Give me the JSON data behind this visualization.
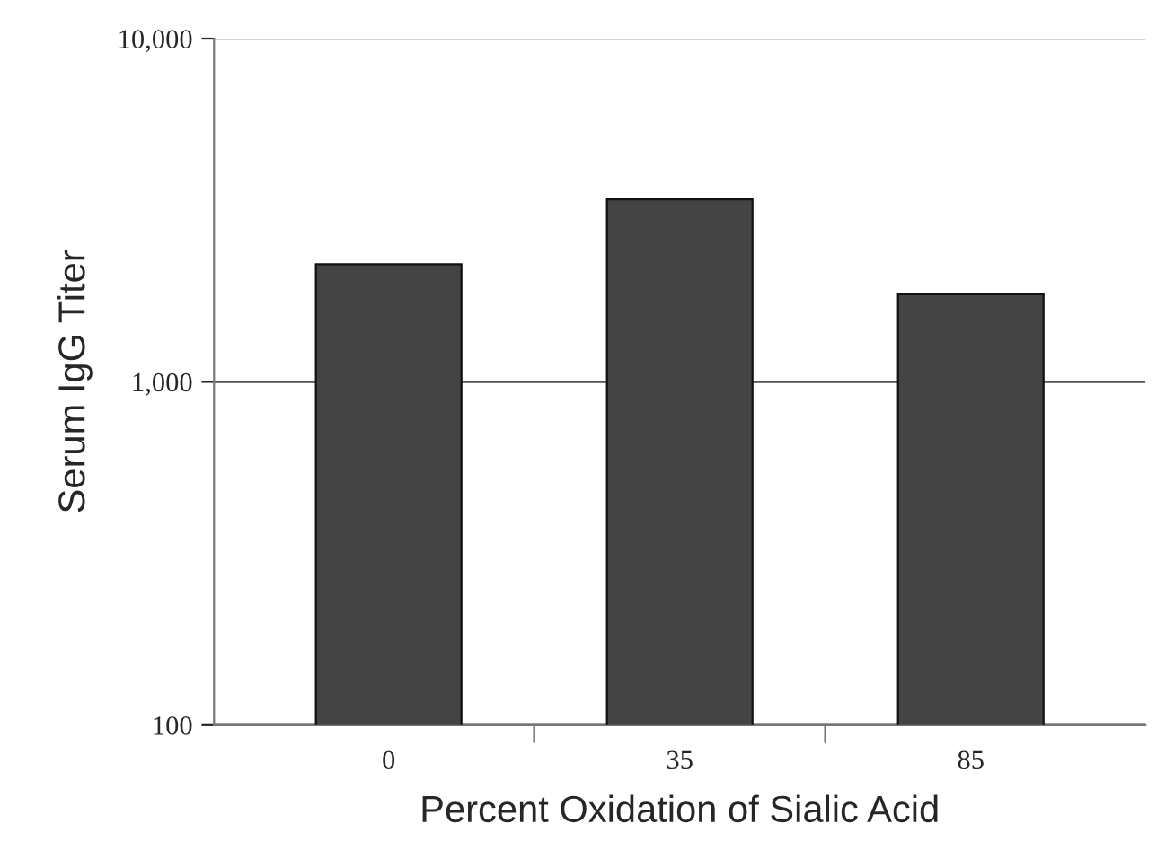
{
  "chart_data": {
    "type": "bar",
    "xlabel": "Percent Oxidation of Sialic Acid",
    "ylabel": "Serum IgG Titer",
    "categories": [
      "0",
      "35",
      "85"
    ],
    "values": [
      2200,
      3400,
      1800
    ],
    "color": "#444444",
    "log": true,
    "ylim": [
      100,
      10000
    ],
    "yticks": [
      {
        "value": 100,
        "label": "100"
      },
      {
        "value": 1000,
        "label": "1,000"
      },
      {
        "value": 10000,
        "label": "10,000"
      }
    ],
    "grid": "y"
  }
}
